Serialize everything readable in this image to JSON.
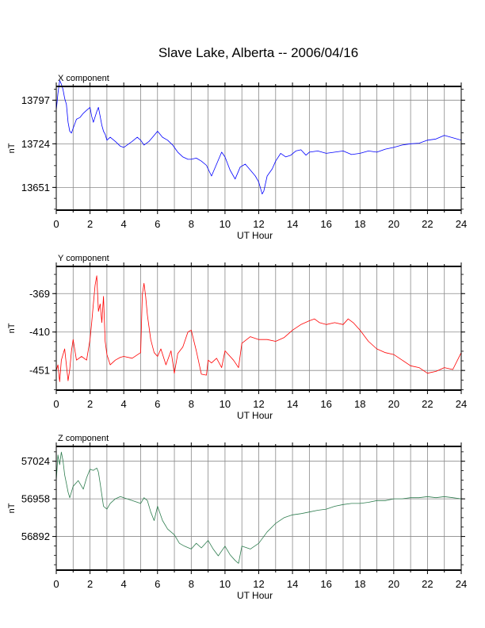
{
  "title": "Slave Lake, Alberta -- 2006/04/16",
  "chart_data": [
    {
      "type": "line",
      "panel_label": "X component",
      "xlabel": "UT Hour",
      "ylabel": "nT",
      "xlim": [
        0,
        24
      ],
      "ylim": [
        13613,
        13820
      ],
      "xticks": [
        0,
        2,
        4,
        6,
        8,
        10,
        12,
        14,
        16,
        18,
        20,
        22,
        24
      ],
      "yticks": [
        13651,
        13724,
        13797
      ],
      "grid": true,
      "color": "#0000ff",
      "x": [
        0.0,
        0.1,
        0.2,
        0.3,
        0.4,
        0.5,
        0.6,
        0.7,
        0.8,
        0.9,
        1.0,
        1.2,
        1.4,
        1.6,
        1.8,
        2.0,
        2.1,
        2.2,
        2.4,
        2.5,
        2.6,
        2.7,
        2.8,
        2.9,
        3.0,
        3.2,
        3.5,
        3.8,
        4.0,
        4.2,
        4.5,
        4.8,
        5.0,
        5.2,
        5.5,
        5.8,
        6.0,
        6.3,
        6.6,
        6.9,
        7.2,
        7.5,
        7.8,
        8.0,
        8.3,
        8.6,
        8.9,
        9.0,
        9.2,
        9.5,
        9.8,
        10.0,
        10.3,
        10.6,
        10.9,
        11.2,
        11.5,
        11.8,
        12.0,
        12.2,
        12.3,
        12.5,
        12.8,
        13.0,
        13.3,
        13.6,
        13.9,
        14.2,
        14.5,
        14.8,
        15.0,
        15.5,
        16.0,
        16.5,
        17.0,
        17.5,
        18.0,
        18.5,
        19.0,
        19.5,
        20.0,
        20.5,
        21.0,
        21.5,
        22.0,
        22.5,
        23.0,
        23.5,
        24.0
      ],
      "values": [
        13780,
        13808,
        13830,
        13824,
        13815,
        13800,
        13790,
        13760,
        13745,
        13742,
        13750,
        13765,
        13768,
        13775,
        13780,
        13785,
        13770,
        13760,
        13778,
        13785,
        13770,
        13755,
        13745,
        13740,
        13730,
        13735,
        13728,
        13720,
        13718,
        13722,
        13728,
        13735,
        13730,
        13722,
        13728,
        13738,
        13745,
        13735,
        13730,
        13722,
        13710,
        13702,
        13698,
        13698,
        13700,
        13695,
        13688,
        13682,
        13670,
        13690,
        13710,
        13702,
        13680,
        13665,
        13685,
        13690,
        13680,
        13670,
        13660,
        13640,
        13645,
        13670,
        13682,
        13695,
        13708,
        13702,
        13705,
        13712,
        13714,
        13705,
        13710,
        13712,
        13708,
        13710,
        13712,
        13706,
        13708,
        13712,
        13710,
        13715,
        13718,
        13722,
        13724,
        13725,
        13730,
        13732,
        13738,
        13734,
        13730
      ]
    },
    {
      "type": "line",
      "panel_label": "Y component",
      "xlabel": "UT Hour",
      "ylabel": "nT",
      "xlim": [
        0,
        24
      ],
      "ylim": [
        -472,
        -340
      ],
      "xticks": [
        0,
        2,
        4,
        6,
        8,
        10,
        12,
        14,
        16,
        18,
        20,
        22,
        24
      ],
      "yticks": [
        -451,
        -410,
        -369
      ],
      "grid": true,
      "color": "#ff0000",
      "x": [
        0.0,
        0.1,
        0.2,
        0.3,
        0.5,
        0.7,
        0.8,
        0.9,
        1.0,
        1.2,
        1.5,
        1.8,
        2.0,
        2.1,
        2.2,
        2.3,
        2.4,
        2.5,
        2.6,
        2.7,
        2.8,
        2.9,
        3.0,
        3.2,
        3.5,
        3.8,
        4.0,
        4.5,
        5.0,
        5.1,
        5.2,
        5.3,
        5.4,
        5.5,
        5.6,
        5.8,
        6.0,
        6.2,
        6.5,
        6.8,
        7.0,
        7.2,
        7.5,
        7.8,
        8.0,
        8.3,
        8.6,
        8.9,
        9.0,
        9.2,
        9.5,
        9.8,
        10.0,
        10.2,
        10.5,
        10.8,
        11.0,
        11.5,
        12.0,
        12.5,
        13.0,
        13.5,
        14.0,
        14.5,
        15.0,
        15.3,
        15.6,
        16.0,
        16.5,
        17.0,
        17.3,
        17.6,
        18.0,
        18.5,
        19.0,
        19.5,
        20.0,
        20.5,
        21.0,
        21.5,
        22.0,
        22.5,
        23.0,
        23.5,
        24.0
      ],
      "values": [
        -451,
        -445,
        -463,
        -440,
        -428,
        -462,
        -450,
        -430,
        -418,
        -440,
        -436,
        -440,
        -418,
        -400,
        -380,
        -360,
        -350,
        -388,
        -380,
        -400,
        -372,
        -420,
        -434,
        -445,
        -440,
        -437,
        -436,
        -438,
        -432,
        -370,
        -358,
        -372,
        -392,
        -405,
        -418,
        -432,
        -436,
        -428,
        -445,
        -430,
        -454,
        -433,
        -426,
        -410,
        -408,
        -430,
        -455,
        -456,
        -440,
        -443,
        -438,
        -448,
        -430,
        -434,
        -440,
        -448,
        -422,
        -415,
        -418,
        -418,
        -420,
        -416,
        -408,
        -402,
        -398,
        -396,
        -400,
        -402,
        -400,
        -402,
        -396,
        -400,
        -408,
        -420,
        -428,
        -432,
        -434,
        -440,
        -446,
        -448,
        -454,
        -452,
        -448,
        -450,
        -432
      ]
    },
    {
      "type": "line",
      "panel_label": "Z component",
      "xlabel": "UT Hour",
      "ylabel": "nT",
      "xlim": [
        0,
        24
      ],
      "ylim": [
        56833,
        57050
      ],
      "xticks": [
        0,
        2,
        4,
        6,
        8,
        10,
        12,
        14,
        16,
        18,
        20,
        22,
        24
      ],
      "yticks": [
        56892,
        56958,
        57024
      ],
      "grid": true,
      "color": "#2e7d4f",
      "x": [
        0.0,
        0.1,
        0.2,
        0.3,
        0.4,
        0.5,
        0.6,
        0.7,
        0.8,
        1.0,
        1.3,
        1.6,
        1.8,
        2.0,
        2.2,
        2.4,
        2.5,
        2.6,
        2.8,
        3.0,
        3.2,
        3.5,
        3.8,
        4.0,
        4.5,
        5.0,
        5.2,
        5.4,
        5.6,
        5.8,
        6.0,
        6.3,
        6.6,
        7.0,
        7.3,
        7.6,
        8.0,
        8.3,
        8.6,
        9.0,
        9.3,
        9.6,
        10.0,
        10.3,
        10.6,
        10.8,
        11.0,
        11.5,
        12.0,
        12.5,
        13.0,
        13.5,
        14.0,
        14.5,
        15.0,
        15.5,
        16.0,
        16.5,
        17.0,
        17.5,
        18.0,
        18.5,
        19.0,
        19.5,
        20.0,
        20.5,
        21.0,
        21.5,
        22.0,
        22.5,
        23.0,
        23.5,
        24.0
      ],
      "values": [
        56990,
        57035,
        57018,
        57040,
        57025,
        57000,
        56985,
        56970,
        56960,
        56980,
        56990,
        56975,
        56995,
        57010,
        57008,
        57012,
        57005,
        56985,
        56945,
        56940,
        56950,
        56958,
        56962,
        56960,
        56955,
        56950,
        56960,
        56955,
        56935,
        56920,
        56945,
        56920,
        56905,
        56895,
        56880,
        56875,
        56870,
        56880,
        56872,
        56885,
        56870,
        56858,
        56875,
        56860,
        56850,
        56845,
        56875,
        56870,
        56880,
        56900,
        56915,
        56925,
        56930,
        56932,
        56935,
        56938,
        56940,
        56945,
        56948,
        56950,
        56950,
        56952,
        56955,
        56955,
        56958,
        56958,
        56960,
        56960,
        56962,
        56960,
        56962,
        56960,
        56958
      ]
    }
  ]
}
